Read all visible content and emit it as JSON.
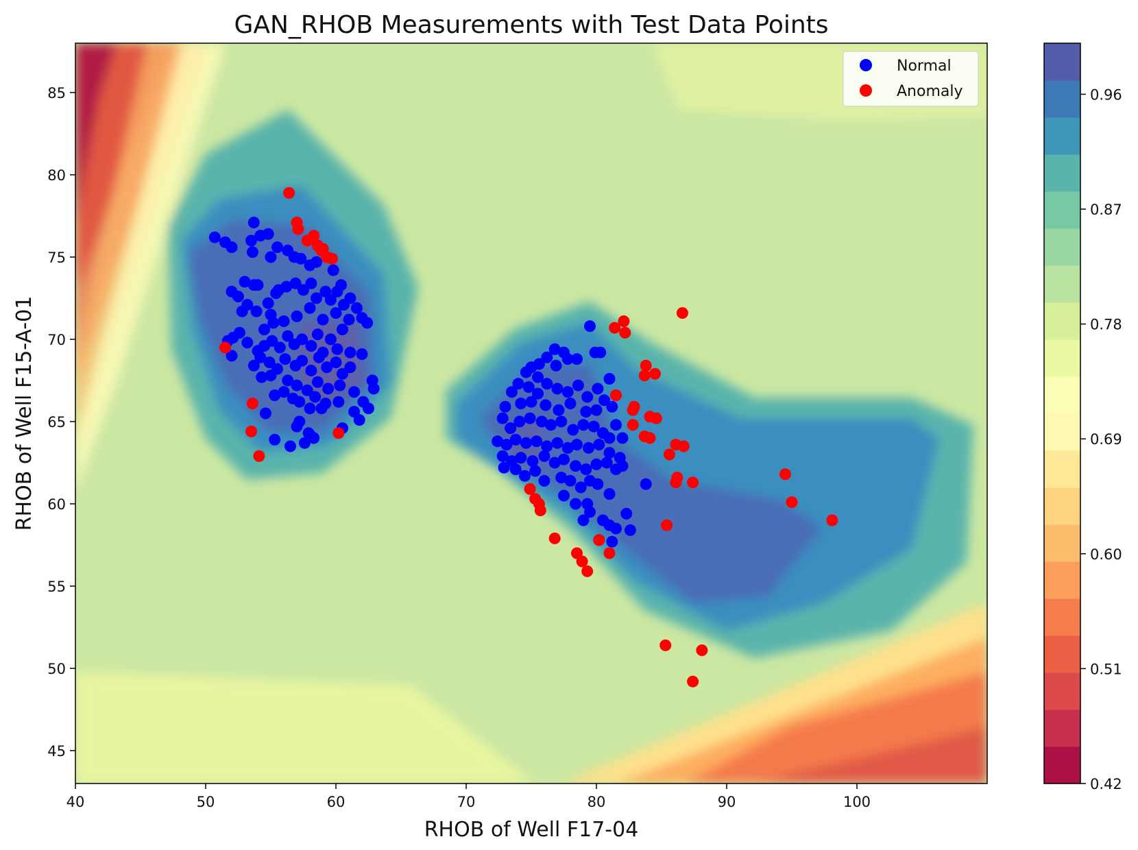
{
  "chart_data": {
    "type": "contour+scatter",
    "title": "GAN_RHOB Measurements with Test Data Points",
    "xlabel": "RHOB of Well F17-04",
    "ylabel": "RHOB of Well F15-A-01",
    "xlim": [
      40,
      110
    ],
    "ylim": [
      43,
      88
    ],
    "xticks": [
      40,
      50,
      60,
      70,
      80,
      90,
      100
    ],
    "yticks": [
      45,
      50,
      55,
      60,
      65,
      70,
      75,
      80,
      85
    ],
    "colorbar": {
      "range": [
        0.42,
        1.0
      ],
      "ticks": [
        0.42,
        0.51,
        0.6,
        0.69,
        0.78,
        0.87,
        0.96
      ],
      "tick_labels": [
        "0.42",
        "0.51",
        "0.60",
        "0.69",
        "0.78",
        "0.87",
        "0.96"
      ],
      "colormap": "Spectral"
    },
    "legend": {
      "placement": "top-right",
      "entries": [
        {
          "label": "Normal",
          "color": "#0000ff"
        },
        {
          "label": "Anomaly",
          "color": "#ff0000"
        }
      ]
    },
    "series": [
      {
        "name": "Normal",
        "color": "#0000ff",
        "points": [
          [
            50.7,
            76.2
          ],
          [
            51.5,
            75.9
          ],
          [
            52.0,
            75.6
          ],
          [
            53.7,
            77.1
          ],
          [
            53.5,
            76.0
          ],
          [
            54.2,
            76.3
          ],
          [
            54.8,
            76.4
          ],
          [
            53.6,
            75.3
          ],
          [
            55.0,
            75.0
          ],
          [
            55.5,
            75.6
          ],
          [
            56.3,
            75.4
          ],
          [
            56.8,
            75.0
          ],
          [
            57.3,
            74.9
          ],
          [
            58.0,
            74.5
          ],
          [
            58.5,
            74.7
          ],
          [
            59.8,
            74.2
          ],
          [
            52.0,
            72.9
          ],
          [
            52.5,
            72.6
          ],
          [
            52.8,
            71.7
          ],
          [
            53.2,
            72.1
          ],
          [
            53.0,
            73.5
          ],
          [
            53.7,
            73.3
          ],
          [
            54.0,
            73.3
          ],
          [
            53.9,
            71.7
          ],
          [
            54.8,
            72.2
          ],
          [
            55.4,
            72.8
          ],
          [
            55.0,
            71.5
          ],
          [
            55.6,
            73.0
          ],
          [
            56.2,
            73.2
          ],
          [
            56.9,
            73.4
          ],
          [
            57.5,
            73.0
          ],
          [
            58.1,
            73.4
          ],
          [
            58.5,
            72.5
          ],
          [
            59.2,
            72.9
          ],
          [
            59.6,
            72.4
          ],
          [
            60.1,
            72.9
          ],
          [
            60.6,
            72.1
          ],
          [
            60.4,
            73.3
          ],
          [
            61.1,
            72.5
          ],
          [
            61.6,
            71.9
          ],
          [
            62.0,
            71.3
          ],
          [
            62.4,
            71.0
          ],
          [
            61.0,
            71.2
          ],
          [
            60.0,
            71.6
          ],
          [
            59.0,
            71.2
          ],
          [
            58.0,
            71.9
          ],
          [
            57.0,
            71.4
          ],
          [
            56.0,
            71.1
          ],
          [
            55.2,
            71.0
          ],
          [
            54.5,
            70.6
          ],
          [
            51.7,
            69.9
          ],
          [
            52.1,
            70.1
          ],
          [
            52.6,
            70.4
          ],
          [
            52.0,
            69.0
          ],
          [
            53.2,
            69.8
          ],
          [
            54.0,
            69.3
          ],
          [
            54.5,
            69.6
          ],
          [
            55.1,
            69.9
          ],
          [
            55.7,
            69.5
          ],
          [
            56.3,
            70.2
          ],
          [
            56.8,
            69.7
          ],
          [
            57.4,
            70.0
          ],
          [
            58.1,
            69.6
          ],
          [
            58.6,
            70.3
          ],
          [
            59.0,
            69.2
          ],
          [
            59.6,
            70.0
          ],
          [
            60.1,
            69.4
          ],
          [
            60.5,
            70.6
          ],
          [
            61.1,
            69.2
          ],
          [
            62.0,
            69.1
          ],
          [
            53.7,
            68.4
          ],
          [
            54.2,
            68.9
          ],
          [
            54.9,
            68.6
          ],
          [
            55.5,
            68.2
          ],
          [
            56.1,
            68.8
          ],
          [
            56.9,
            68.4
          ],
          [
            57.4,
            68.7
          ],
          [
            58.1,
            68.1
          ],
          [
            58.7,
            68.9
          ],
          [
            59.3,
            68.3
          ],
          [
            60.0,
            68.6
          ],
          [
            60.5,
            67.9
          ],
          [
            61.1,
            68.3
          ],
          [
            62.8,
            67.5
          ],
          [
            62.9,
            67.0
          ],
          [
            54.3,
            67.7
          ],
          [
            55.0,
            67.8
          ],
          [
            56.3,
            67.5
          ],
          [
            57.0,
            67.2
          ],
          [
            58.6,
            67.4
          ],
          [
            59.4,
            67.0
          ],
          [
            60.3,
            67.2
          ],
          [
            61.4,
            66.8
          ],
          [
            62.1,
            66.2
          ],
          [
            55.3,
            66.6
          ],
          [
            56.0,
            66.8
          ],
          [
            56.7,
            66.4
          ],
          [
            57.2,
            66.2
          ],
          [
            57.8,
            66.9
          ],
          [
            58.4,
            66.5
          ],
          [
            59.2,
            66.1
          ],
          [
            60.2,
            66.2
          ],
          [
            61.4,
            65.6
          ],
          [
            62.5,
            65.8
          ],
          [
            54.6,
            65.5
          ],
          [
            57.2,
            65.0
          ],
          [
            58.0,
            65.8
          ],
          [
            58.9,
            65.8
          ],
          [
            61.8,
            65.1
          ],
          [
            60.5,
            64.6
          ],
          [
            55.3,
            63.9
          ],
          [
            56.5,
            63.5
          ],
          [
            57.6,
            63.7
          ],
          [
            57.9,
            64.3
          ],
          [
            58.3,
            64.0
          ],
          [
            57.0,
            64.7
          ],
          [
            58.0,
            64.2
          ],
          [
            79.5,
            70.8
          ],
          [
            79.9,
            69.2
          ],
          [
            80.3,
            69.2
          ],
          [
            76.8,
            69.4
          ],
          [
            77.5,
            69.2
          ],
          [
            77.8,
            68.8
          ],
          [
            78.5,
            68.8
          ],
          [
            76.2,
            68.9
          ],
          [
            75.6,
            68.5
          ],
          [
            75.0,
            68.3
          ],
          [
            74.6,
            68.0
          ],
          [
            76.9,
            68.4
          ],
          [
            75.5,
            67.7
          ],
          [
            74.0,
            67.3
          ],
          [
            74.8,
            67.1
          ],
          [
            75.5,
            66.7
          ],
          [
            76.2,
            67.3
          ],
          [
            77.0,
            67.0
          ],
          [
            77.8,
            66.8
          ],
          [
            78.6,
            67.2
          ],
          [
            79.3,
            66.5
          ],
          [
            80.1,
            67.0
          ],
          [
            80.6,
            66.3
          ],
          [
            81.0,
            67.6
          ],
          [
            73.5,
            66.8
          ],
          [
            74.2,
            66.1
          ],
          [
            75.0,
            66.2
          ],
          [
            76.1,
            66.0
          ],
          [
            77.1,
            65.7
          ],
          [
            78.0,
            66.1
          ],
          [
            79.2,
            65.6
          ],
          [
            80.0,
            65.7
          ],
          [
            81.2,
            65.9
          ],
          [
            81.5,
            64.8
          ],
          [
            82.0,
            64.0
          ],
          [
            73.0,
            65.9
          ],
          [
            72.8,
            65.2
          ],
          [
            73.4,
            64.6
          ],
          [
            74.1,
            65.0
          ],
          [
            74.9,
            65.2
          ],
          [
            75.8,
            65.0
          ],
          [
            76.5,
            64.8
          ],
          [
            77.3,
            65.0
          ],
          [
            78.2,
            64.5
          ],
          [
            79.0,
            64.8
          ],
          [
            79.8,
            64.7
          ],
          [
            80.5,
            64.3
          ],
          [
            81.0,
            64.0
          ],
          [
            72.4,
            63.8
          ],
          [
            73.1,
            63.6
          ],
          [
            73.8,
            63.9
          ],
          [
            74.6,
            63.7
          ],
          [
            75.4,
            63.8
          ],
          [
            76.2,
            63.5
          ],
          [
            77.0,
            63.7
          ],
          [
            77.8,
            63.4
          ],
          [
            78.5,
            63.6
          ],
          [
            79.4,
            63.4
          ],
          [
            80.2,
            63.6
          ],
          [
            81.0,
            63.1
          ],
          [
            81.8,
            62.8
          ],
          [
            72.8,
            62.9
          ],
          [
            73.5,
            62.6
          ],
          [
            74.2,
            62.8
          ],
          [
            75.1,
            62.6
          ],
          [
            76.0,
            62.9
          ],
          [
            76.8,
            62.5
          ],
          [
            77.5,
            62.7
          ],
          [
            78.4,
            62.3
          ],
          [
            79.2,
            62.1
          ],
          [
            80.0,
            62.4
          ],
          [
            80.8,
            62.5
          ],
          [
            81.5,
            62.1
          ],
          [
            82.0,
            62.3
          ],
          [
            72.9,
            62.2
          ],
          [
            73.8,
            62.1
          ],
          [
            74.5,
            61.7
          ],
          [
            75.3,
            62.0
          ],
          [
            76.0,
            61.4
          ],
          [
            77.3,
            61.6
          ],
          [
            78.0,
            61.4
          ],
          [
            78.8,
            61.0
          ],
          [
            79.5,
            61.4
          ],
          [
            80.1,
            61.2
          ],
          [
            81.0,
            60.6
          ],
          [
            83.8,
            61.2
          ],
          [
            77.5,
            60.5
          ],
          [
            78.4,
            60.0
          ],
          [
            79.3,
            60.0
          ],
          [
            79.5,
            59.5
          ],
          [
            79.0,
            59.0
          ],
          [
            80.5,
            59.0
          ],
          [
            81.0,
            58.7
          ],
          [
            81.5,
            58.5
          ],
          [
            82.3,
            59.4
          ],
          [
            82.6,
            58.4
          ],
          [
            81.2,
            57.7
          ],
          [
            80.2,
            57.8
          ]
        ]
      },
      {
        "name": "Anomaly",
        "color": "#ff0000",
        "points": [
          [
            56.4,
            78.9
          ],
          [
            57.0,
            77.1
          ],
          [
            57.1,
            76.7
          ],
          [
            58.3,
            76.3
          ],
          [
            58.6,
            75.7
          ],
          [
            59.0,
            75.5
          ],
          [
            59.3,
            75.0
          ],
          [
            59.7,
            74.9
          ],
          [
            58.9,
            75.4
          ],
          [
            57.8,
            76.0
          ],
          [
            51.5,
            69.5
          ],
          [
            53.6,
            66.1
          ],
          [
            53.5,
            64.4
          ],
          [
            54.1,
            62.9
          ],
          [
            60.2,
            64.3
          ],
          [
            86.6,
            71.6
          ],
          [
            81.4,
            70.7
          ],
          [
            82.1,
            71.1
          ],
          [
            82.2,
            70.4
          ],
          [
            83.8,
            68.4
          ],
          [
            83.7,
            67.8
          ],
          [
            84.5,
            67.9
          ],
          [
            81.5,
            66.6
          ],
          [
            82.9,
            65.9
          ],
          [
            82.8,
            65.7
          ],
          [
            84.1,
            65.3
          ],
          [
            84.6,
            65.2
          ],
          [
            82.8,
            64.8
          ],
          [
            83.7,
            64.1
          ],
          [
            84.1,
            64.0
          ],
          [
            86.1,
            63.6
          ],
          [
            86.7,
            63.5
          ],
          [
            85.6,
            63.0
          ],
          [
            86.2,
            61.6
          ],
          [
            86.1,
            61.3
          ],
          [
            87.4,
            61.3
          ],
          [
            94.5,
            61.8
          ],
          [
            95.0,
            60.1
          ],
          [
            98.1,
            59.0
          ],
          [
            85.4,
            58.7
          ],
          [
            74.9,
            60.9
          ],
          [
            75.3,
            60.3
          ],
          [
            75.6,
            60.0
          ],
          [
            75.7,
            59.6
          ],
          [
            76.8,
            57.9
          ],
          [
            78.5,
            57.0
          ],
          [
            78.9,
            56.5
          ],
          [
            79.3,
            55.9
          ],
          [
            80.2,
            57.8
          ],
          [
            81.0,
            57.0
          ],
          [
            85.3,
            51.4
          ],
          [
            88.1,
            51.1
          ],
          [
            87.4,
            49.2
          ]
        ]
      }
    ]
  }
}
